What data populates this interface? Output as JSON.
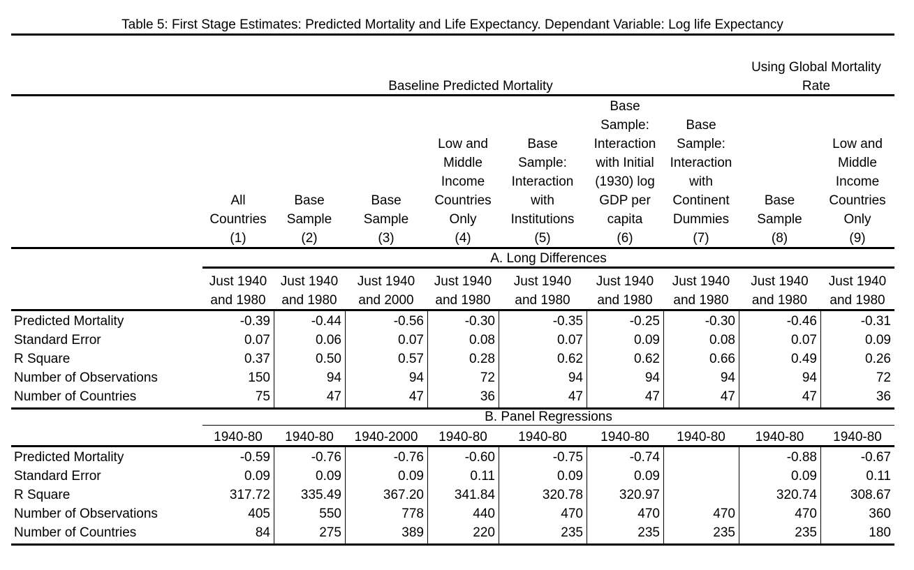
{
  "title": "Table 5: First Stage Estimates: Predicted Mortality and Life Expectancy. Dependant Variable: Log life Expectancy",
  "group_headers": {
    "baseline": "Baseline Predicted Mortality",
    "global_line1": "Using Global Mortality",
    "global_line2": "Rate"
  },
  "columns": [
    {
      "lines": [
        "All",
        "Countries"
      ],
      "num": "(1)"
    },
    {
      "lines": [
        "Base",
        "Sample"
      ],
      "num": "(2)"
    },
    {
      "lines": [
        "Base",
        "Sample"
      ],
      "num": "(3)"
    },
    {
      "lines": [
        "Low and",
        "Middle",
        "Income",
        "Countries",
        "Only"
      ],
      "num": "(4)"
    },
    {
      "lines": [
        "Base",
        "Sample:",
        "Interaction",
        "with",
        "Institutions"
      ],
      "num": "(5)"
    },
    {
      "lines": [
        "Base",
        "Sample:",
        "Interaction",
        "with Initial",
        "(1930) log",
        "GDP per",
        "capita"
      ],
      "num": "(6)"
    },
    {
      "lines": [
        "Base",
        "Sample:",
        "Interaction",
        "with",
        "Continent",
        "Dummies"
      ],
      "num": "(7)"
    },
    {
      "lines": [
        "Base",
        "Sample"
      ],
      "num": "(8)"
    },
    {
      "lines": [
        "Low and",
        "Middle",
        "Income",
        "Countries",
        "Only"
      ],
      "num": "(9)"
    }
  ],
  "panel_a": {
    "heading": "A. Long Differences",
    "periods": [
      [
        "Just 1940",
        "and 1980"
      ],
      [
        "Just 1940",
        "and 1980"
      ],
      [
        "Just 1940",
        "and 2000"
      ],
      [
        "Just 1940",
        "and 1980"
      ],
      [
        "Just 1940",
        "and 1980"
      ],
      [
        "Just 1940",
        "and 1980"
      ],
      [
        "Just 1940",
        "and 1980"
      ],
      [
        "Just 1940",
        "and 1980"
      ],
      [
        "Just 1940",
        "and 1980"
      ]
    ],
    "rows": [
      {
        "label": "Predicted Mortality",
        "values": [
          "-0.39",
          "-0.44",
          "-0.56",
          "-0.30",
          "-0.35",
          "-0.25",
          "-0.30",
          "-0.46",
          "-0.31"
        ]
      },
      {
        "label": "Standard Error",
        "values": [
          "0.07",
          "0.06",
          "0.07",
          "0.08",
          "0.07",
          "0.09",
          "0.08",
          "0.07",
          "0.09"
        ]
      },
      {
        "label": "R Square",
        "values": [
          "0.37",
          "0.50",
          "0.57",
          "0.28",
          "0.62",
          "0.62",
          "0.66",
          "0.49",
          "0.26"
        ]
      },
      {
        "label": "Number of Observations",
        "values": [
          "150",
          "94",
          "94",
          "72",
          "94",
          "94",
          "94",
          "94",
          "72"
        ]
      },
      {
        "label": "Number of Countries",
        "values": [
          "75",
          "47",
          "47",
          "36",
          "47",
          "47",
          "47",
          "47",
          "36"
        ]
      }
    ]
  },
  "panel_b": {
    "heading": "B. Panel Regressions",
    "periods": [
      "1940-80",
      "1940-80",
      "1940-2000",
      "1940-80",
      "1940-80",
      "1940-80",
      "1940-80",
      "1940-80",
      "1940-80"
    ],
    "rows": [
      {
        "label": "Predicted Mortality",
        "values": [
          "-0.59",
          "-0.76",
          "-0.76",
          "-0.60",
          "-0.75",
          "-0.74",
          "",
          "-0.88",
          "-0.67"
        ]
      },
      {
        "label": "Standard Error",
        "values": [
          "0.09",
          "0.09",
          "0.09",
          "0.11",
          "0.09",
          "0.09",
          "",
          "0.09",
          "0.11"
        ]
      },
      {
        "label": "R Square",
        "values": [
          "317.72",
          "335.49",
          "367.20",
          "341.84",
          "320.78",
          "320.97",
          "",
          "320.74",
          "308.67"
        ]
      },
      {
        "label": "Number of Observations",
        "values": [
          "405",
          "550",
          "778",
          "440",
          "470",
          "470",
          "470",
          "470",
          "360"
        ]
      },
      {
        "label": "Number of Countries",
        "values": [
          "84",
          "275",
          "389",
          "220",
          "235",
          "235",
          "235",
          "235",
          "180"
        ]
      }
    ]
  }
}
